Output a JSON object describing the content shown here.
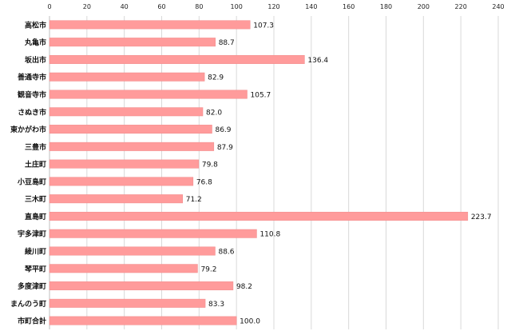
{
  "chart_data": {
    "type": "bar",
    "orientation": "horizontal",
    "title": "",
    "xlabel": "",
    "ylabel": "",
    "xlim": [
      0,
      240
    ],
    "x_ticks": [
      0,
      20,
      40,
      60,
      80,
      100,
      120,
      140,
      160,
      180,
      200,
      220,
      240
    ],
    "x_axis_position": "top",
    "grid": true,
    "legend": "none",
    "categories": [
      "高松市",
      "丸亀市",
      "坂出市",
      "善通寺市",
      "観音寺市",
      "さぬき市",
      "東かがわ市",
      "三豊市",
      "土庄町",
      "小豆島町",
      "三木町",
      "直島町",
      "宇多津町",
      "綾川町",
      "琴平町",
      "多度津町",
      "まんのう町",
      "市町合計"
    ],
    "values": [
      107.3,
      88.7,
      136.4,
      82.9,
      105.7,
      82.0,
      86.9,
      87.9,
      79.8,
      76.8,
      71.2,
      223.7,
      110.8,
      88.6,
      79.2,
      98.2,
      83.3,
      100.0
    ],
    "value_labels": [
      "107.3",
      "88.7",
      "136.4",
      "82.9",
      "105.7",
      "82.0",
      "86.9",
      "87.9",
      "79.8",
      "76.8",
      "71.2",
      "223.7",
      "110.8",
      "88.6",
      "79.2",
      "98.2",
      "83.3",
      "100.0"
    ],
    "bar_color": "#ff9b9b",
    "bar_stroke": "#f08a8a"
  }
}
